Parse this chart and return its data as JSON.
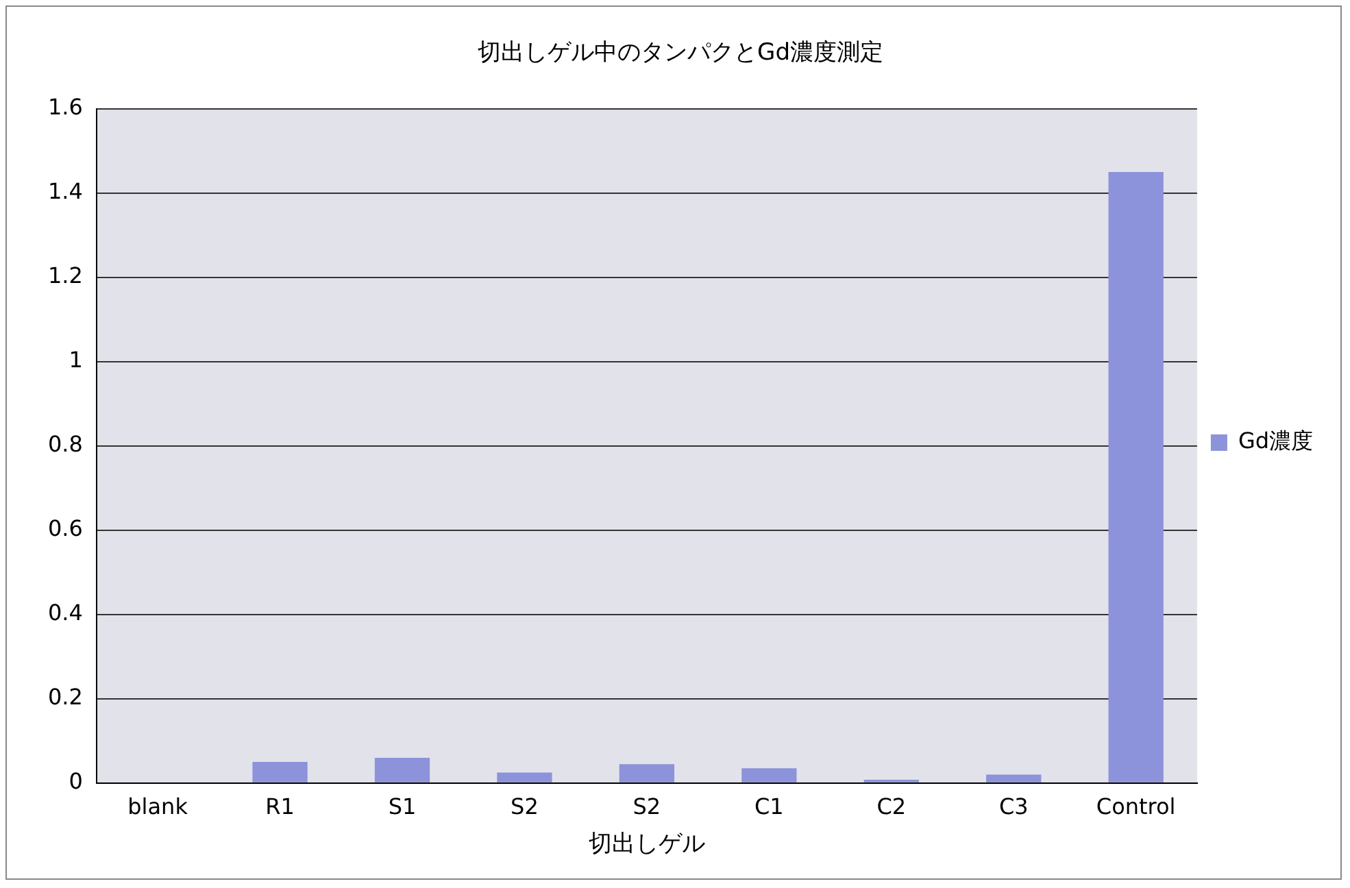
{
  "chart_data": {
    "type": "bar",
    "title": "切出しゲル中のタンパクとGd濃度測定",
    "xlabel": "切出しゲル",
    "categories": [
      "blank",
      "R1",
      "S1",
      "S2",
      "S2",
      "C1",
      "C2",
      "C3",
      "Control"
    ],
    "series": [
      {
        "name": "Gd濃度",
        "color": "#8c93da",
        "values": [
          0,
          0.05,
          0.06,
          0.025,
          0.045,
          0.035,
          0.008,
          0.02,
          1.45
        ]
      }
    ],
    "ylim": [
      0,
      1.6
    ],
    "yticks": [
      0,
      0.2,
      0.4,
      0.6,
      0.8,
      1,
      1.2,
      1.4,
      1.6
    ],
    "grid": "y",
    "legend": "right"
  }
}
